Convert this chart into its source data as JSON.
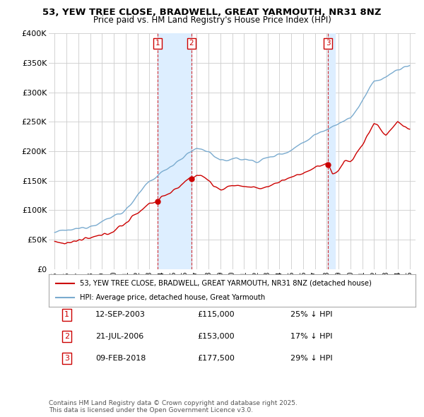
{
  "title": "53, YEW TREE CLOSE, BRADWELL, GREAT YARMOUTH, NR31 8NZ",
  "subtitle": "Price paid vs. HM Land Registry's House Price Index (HPI)",
  "red_label": "53, YEW TREE CLOSE, BRADWELL, GREAT YARMOUTH, NR31 8NZ (detached house)",
  "blue_label": "HPI: Average price, detached house, Great Yarmouth",
  "transactions": [
    {
      "num": 1,
      "date_str": "12-SEP-2003",
      "date_x": 2003.71,
      "price": 115000,
      "pct": "25%",
      "dir": "↓"
    },
    {
      "num": 2,
      "date_str": "21-JUL-2006",
      "date_x": 2006.55,
      "price": 153000,
      "pct": "17%",
      "dir": "↓"
    },
    {
      "num": 3,
      "date_str": "09-FEB-2018",
      "date_x": 2018.11,
      "price": 177500,
      "pct": "29%",
      "dir": "↓"
    }
  ],
  "ylim": [
    0,
    400000
  ],
  "xlim": [
    1994.5,
    2025.5
  ],
  "yticks": [
    0,
    50000,
    100000,
    150000,
    200000,
    250000,
    300000,
    350000,
    400000
  ],
  "ytick_labels": [
    "£0",
    "£50K",
    "£100K",
    "£150K",
    "£200K",
    "£250K",
    "£300K",
    "£350K",
    "£400K"
  ],
  "xticks": [
    1995,
    1996,
    1997,
    1998,
    1999,
    2000,
    2001,
    2002,
    2003,
    2004,
    2005,
    2006,
    2007,
    2008,
    2009,
    2010,
    2011,
    2012,
    2013,
    2014,
    2015,
    2016,
    2017,
    2018,
    2019,
    2020,
    2021,
    2022,
    2023,
    2024,
    2025
  ],
  "red_color": "#cc0000",
  "blue_color": "#7aabcf",
  "shade_color": "#ddeeff",
  "vline_color": "#cc0000",
  "footer": "Contains HM Land Registry data © Crown copyright and database right 2025.\nThis data is licensed under the Open Government Licence v3.0.",
  "background_color": "#ffffff",
  "grid_color": "#cccccc"
}
